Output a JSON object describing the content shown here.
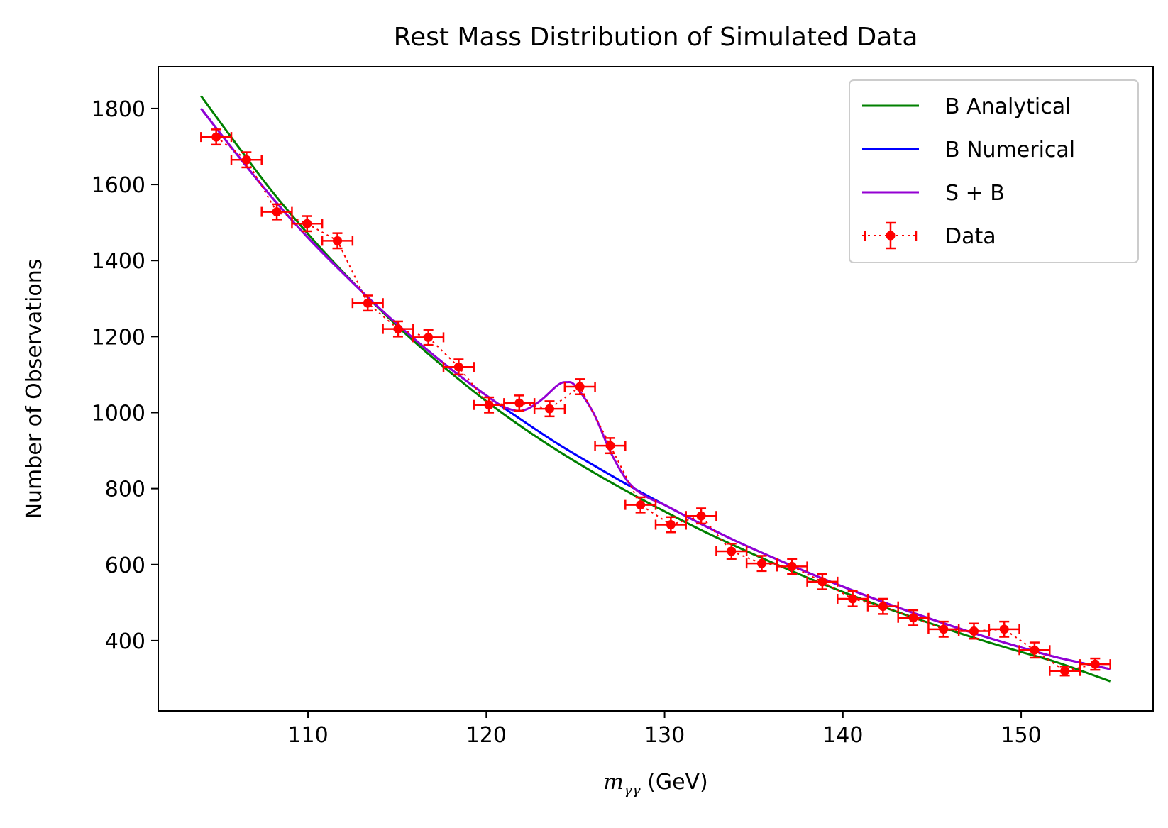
{
  "chart_data": {
    "type": "line",
    "title": "Rest Mass Distribution of Simulated Data",
    "xlabel_math": "m",
    "xlabel_sub": "γγ",
    "xlabel_unit": " (GeV)",
    "ylabel": "Number of Observations",
    "xlim": [
      101.6,
      157.4
    ],
    "ylim": [
      215,
      1910
    ],
    "xticks": [
      110,
      120,
      130,
      140,
      150
    ],
    "yticks": [
      400,
      600,
      800,
      1000,
      1200,
      1400,
      1600,
      1800
    ],
    "grid": false,
    "legend_position": "top-right",
    "series": [
      {
        "name": "B Analytical",
        "kind": "line",
        "color": "#008000",
        "x": [
          104,
          106,
          108,
          110,
          112,
          114,
          116,
          118,
          120,
          122,
          124,
          126,
          128,
          130,
          132,
          134,
          136,
          138,
          140,
          142,
          144,
          146,
          148,
          150,
          152,
          155
        ],
        "y": [
          1833,
          1705,
          1581,
          1470,
          1368,
          1273,
          1185,
          1105,
          1030,
          962,
          900,
          843,
          790,
          740,
          692,
          648,
          606,
          566,
          528,
          493,
          460,
          428,
          398,
          370,
          343,
          293
        ]
      },
      {
        "name": "B Numerical",
        "kind": "line",
        "color": "#0000ff",
        "x": [
          104,
          106,
          108,
          110,
          112,
          114,
          116,
          118,
          120,
          122,
          124,
          126,
          128,
          130,
          132,
          134,
          136,
          138,
          140,
          142,
          144,
          146,
          148,
          150,
          152,
          155
        ],
        "y": [
          1800,
          1680,
          1565,
          1460,
          1365,
          1275,
          1192,
          1115,
          1045,
          980,
          918,
          862,
          808,
          757,
          708,
          662,
          620,
          580,
          542,
          506,
          472,
          440,
          410,
          382,
          356,
          325
        ]
      },
      {
        "name": "S + B",
        "kind": "line",
        "color": "#9400d3",
        "x": [
          104,
          106,
          108,
          110,
          112,
          114,
          116,
          118,
          120,
          121,
          122,
          123,
          124,
          124.5,
          125,
          126,
          127,
          128,
          129,
          130,
          132,
          134,
          136,
          138,
          140,
          142,
          144,
          146,
          148,
          150,
          152,
          155
        ],
        "y": [
          1800,
          1680,
          1565,
          1460,
          1365,
          1275,
          1192,
          1115,
          1045,
          1015,
          1005,
          1030,
          1072,
          1080,
          1070,
          1000,
          893,
          815,
          778,
          757,
          708,
          662,
          620,
          580,
          542,
          506,
          472,
          440,
          410,
          382,
          356,
          325
        ]
      },
      {
        "name": "Data",
        "kind": "errorbar",
        "color": "#ff0000",
        "x": [
          104.85,
          106.55,
          108.25,
          109.95,
          111.65,
          113.35,
          115.05,
          116.75,
          118.45,
          120.15,
          121.85,
          123.55,
          125.25,
          126.95,
          128.65,
          130.35,
          132.05,
          133.75,
          135.45,
          137.15,
          138.85,
          140.55,
          142.25,
          143.95,
          145.65,
          147.35,
          149.05,
          150.75,
          152.45,
          154.15
        ],
        "y": [
          1725,
          1665,
          1528,
          1497,
          1452,
          1288,
          1220,
          1198,
          1120,
          1020,
          1025,
          1010,
          1068,
          913,
          757,
          705,
          728,
          635,
          603,
          595,
          555,
          510,
          490,
          460,
          430,
          425,
          430,
          375,
          320,
          338
        ],
        "xerr": 0.85,
        "yerr": [
          20,
          20,
          20,
          20,
          20,
          20,
          20,
          20,
          20,
          20,
          20,
          20,
          20,
          20,
          20,
          20,
          20,
          20,
          20,
          20,
          20,
          20,
          20,
          20,
          20,
          20,
          20,
          20,
          12,
          15
        ]
      }
    ]
  }
}
